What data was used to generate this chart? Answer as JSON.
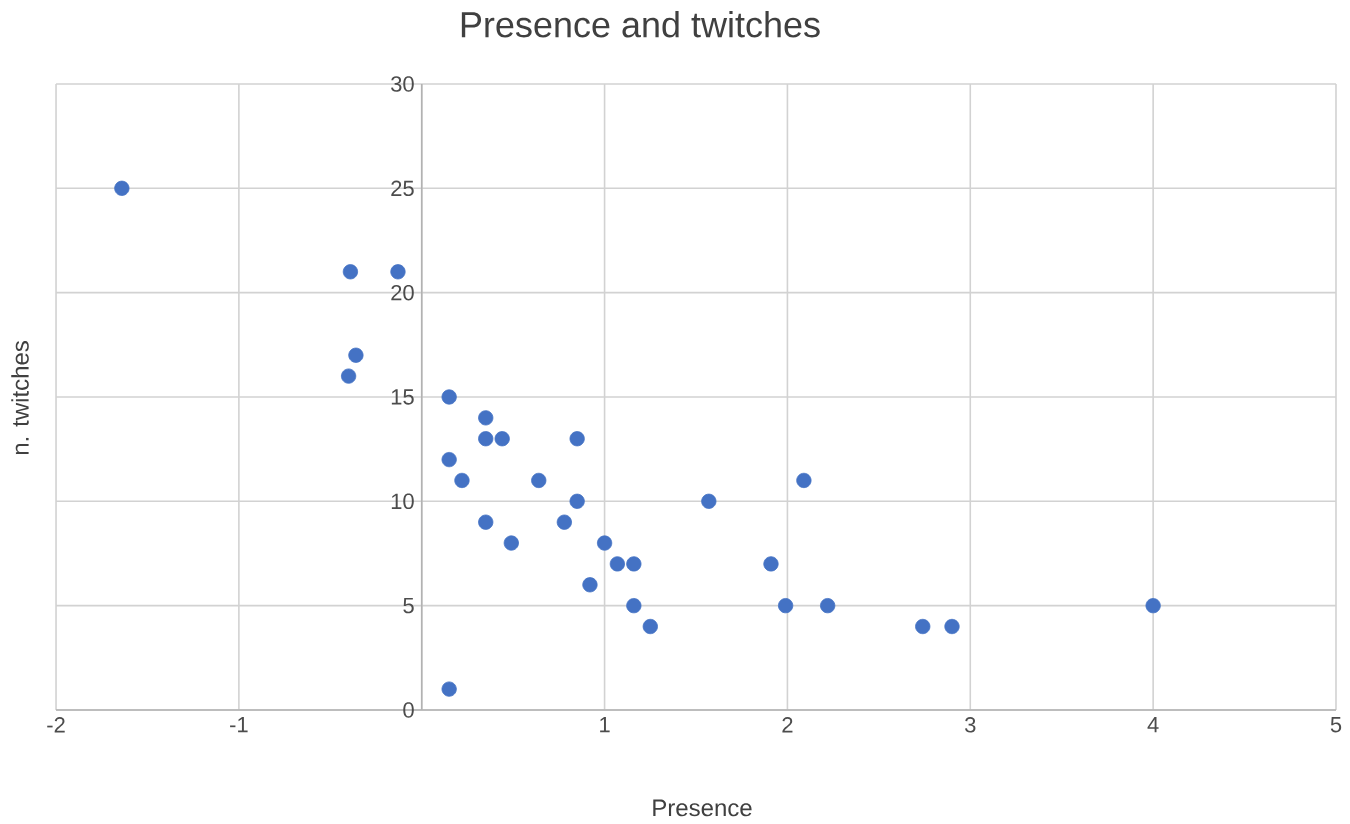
{
  "chart_data": {
    "type": "scatter",
    "title": "Presence and twitches",
    "xlabel": "Presence",
    "ylabel": "n. twitches",
    "x": [
      -1.64,
      -0.39,
      -0.13,
      -0.36,
      -0.4,
      0.15,
      0.35,
      0.35,
      0.44,
      0.85,
      0.15,
      0.22,
      0.64,
      0.85,
      0.35,
      0.78,
      0.49,
      1.0,
      0.92,
      1.07,
      1.16,
      1.16,
      1.25,
      0.15,
      1.57,
      2.09,
      1.91,
      1.99,
      2.22,
      2.74,
      2.9,
      4.0
    ],
    "series": [
      {
        "color": "#4472c4",
        "values": [
          25,
          21,
          21,
          17,
          16,
          15,
          14,
          13,
          13,
          13,
          12,
          11,
          11,
          10,
          9,
          9,
          8,
          8,
          6,
          7,
          7,
          5,
          4,
          1,
          10,
          11,
          7,
          5,
          5,
          4,
          4,
          5
        ]
      }
    ],
    "xlim": [
      -2,
      5
    ],
    "xticks": [
      -2,
      -1,
      {
        "value": 0,
        "label": null
      },
      1,
      2,
      3,
      4,
      5
    ],
    "ylim": [
      0,
      30
    ],
    "yticks": [
      0,
      5,
      10,
      15,
      20,
      25,
      30
    ],
    "grid": true,
    "marker": "circle"
  }
}
